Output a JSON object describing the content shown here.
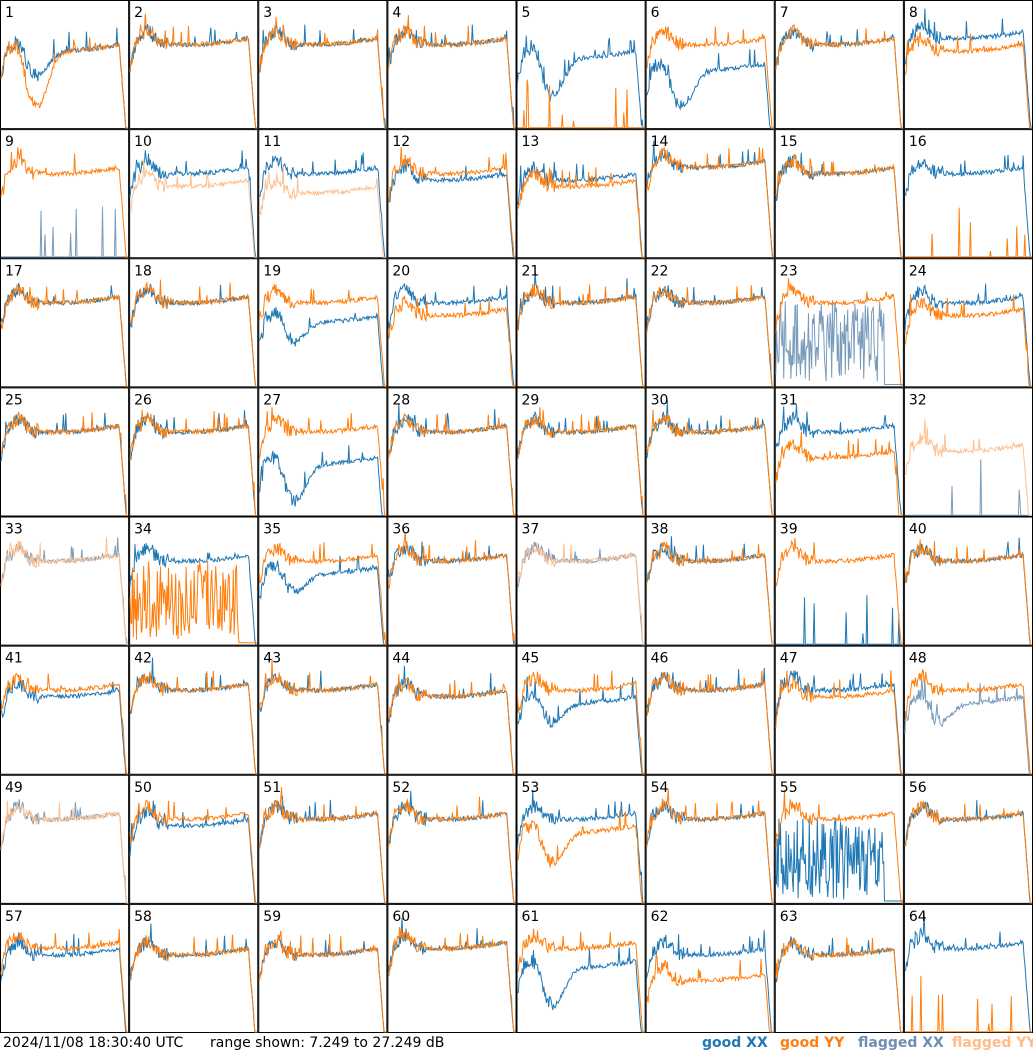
{
  "footer": {
    "timestamp": "2024/11/08 18:30:40 UTC",
    "range_text": "range shown: 7.249 to 27.249 dB",
    "legend": {
      "good_xx": "good XX",
      "good_yy": "good YY",
      "flagged_xx": "flagged XX",
      "flagged_yy": "flagged YY"
    }
  },
  "colors": {
    "good_xx": "#1f77b4",
    "good_yy": "#ff7f0e",
    "flagged_xx": "#7a9cbc",
    "flagged_yy": "#ffc090"
  },
  "chart_data": {
    "type": "line",
    "title": "",
    "ylim": [
      7.249,
      27.249
    ],
    "unit": "dB",
    "grid": false,
    "rows": 8,
    "cols": 8,
    "panels": [
      {
        "label": "1",
        "xx": {
          "flagged": false,
          "shape": "sag",
          "level": 20,
          "sag": 4
        },
        "yy": {
          "flagged": false,
          "shape": "sag",
          "level": 20,
          "sag": 9
        }
      },
      {
        "label": "2",
        "xx": {
          "flagged": false,
          "shape": "normal",
          "level": 21
        },
        "yy": {
          "flagged": false,
          "shape": "normal",
          "level": 21
        }
      },
      {
        "label": "3",
        "xx": {
          "flagged": false,
          "shape": "normal",
          "level": 21
        },
        "yy": {
          "flagged": false,
          "shape": "normal",
          "level": 21
        }
      },
      {
        "label": "4",
        "xx": {
          "flagged": false,
          "shape": "normal",
          "level": 21
        },
        "yy": {
          "flagged": false,
          "shape": "normal",
          "level": 21
        }
      },
      {
        "label": "5",
        "xx": {
          "flagged": false,
          "shape": "sag",
          "level": 19,
          "sag": 6
        },
        "yy": {
          "flagged": false,
          "shape": "dead"
        }
      },
      {
        "label": "6",
        "xx": {
          "flagged": false,
          "shape": "sag",
          "level": 17,
          "sag": 6
        },
        "yy": {
          "flagged": false,
          "shape": "normal",
          "level": 21
        }
      },
      {
        "label": "7",
        "xx": {
          "flagged": false,
          "shape": "normal",
          "level": 21
        },
        "yy": {
          "flagged": false,
          "shape": "normal",
          "level": 21
        }
      },
      {
        "label": "8",
        "xx": {
          "flagged": false,
          "shape": "normal",
          "level": 22
        },
        "yy": {
          "flagged": false,
          "shape": "normal",
          "level": 20
        }
      },
      {
        "label": "9",
        "xx": {
          "flagged": true,
          "shape": "dead"
        },
        "yy": {
          "flagged": false,
          "shape": "normal",
          "level": 21
        }
      },
      {
        "label": "10",
        "xx": {
          "flagged": false,
          "shape": "normal",
          "level": 21
        },
        "yy": {
          "flagged": true,
          "shape": "normal",
          "level": 19
        }
      },
      {
        "label": "11",
        "xx": {
          "flagged": false,
          "shape": "normal",
          "level": 21
        },
        "yy": {
          "flagged": true,
          "shape": "normal",
          "level": 18
        }
      },
      {
        "label": "12",
        "xx": {
          "flagged": false,
          "shape": "normal",
          "level": 20
        },
        "yy": {
          "flagged": false,
          "shape": "normal",
          "level": 21
        }
      },
      {
        "label": "13",
        "xx": {
          "flagged": false,
          "shape": "normal",
          "level": 20
        },
        "yy": {
          "flagged": false,
          "shape": "normal",
          "level": 19
        }
      },
      {
        "label": "14",
        "xx": {
          "flagged": false,
          "shape": "normal",
          "level": 22
        },
        "yy": {
          "flagged": false,
          "shape": "normal",
          "level": 22
        }
      },
      {
        "label": "15",
        "xx": {
          "flagged": false,
          "shape": "normal",
          "level": 21
        },
        "yy": {
          "flagged": false,
          "shape": "normal",
          "level": 21
        }
      },
      {
        "label": "16",
        "xx": {
          "flagged": false,
          "shape": "normal",
          "level": 21
        },
        "yy": {
          "flagged": false,
          "shape": "dead"
        }
      },
      {
        "label": "17",
        "xx": {
          "flagged": false,
          "shape": "normal",
          "level": 21
        },
        "yy": {
          "flagged": false,
          "shape": "normal",
          "level": 21
        }
      },
      {
        "label": "18",
        "xx": {
          "flagged": false,
          "shape": "normal",
          "level": 21
        },
        "yy": {
          "flagged": false,
          "shape": "normal",
          "level": 21
        }
      },
      {
        "label": "19",
        "xx": {
          "flagged": false,
          "shape": "sag",
          "level": 18,
          "sag": 3
        },
        "yy": {
          "flagged": false,
          "shape": "normal",
          "level": 21
        }
      },
      {
        "label": "20",
        "xx": {
          "flagged": false,
          "shape": "normal",
          "level": 21
        },
        "yy": {
          "flagged": false,
          "shape": "normal",
          "level": 19
        }
      },
      {
        "label": "21",
        "xx": {
          "flagged": false,
          "shape": "normal",
          "level": 21
        },
        "yy": {
          "flagged": false,
          "shape": "normal",
          "level": 21
        }
      },
      {
        "label": "22",
        "xx": {
          "flagged": false,
          "shape": "normal",
          "level": 21
        },
        "yy": {
          "flagged": false,
          "shape": "normal",
          "level": 21
        }
      },
      {
        "label": "23",
        "xx": {
          "flagged": true,
          "shape": "noise"
        },
        "yy": {
          "flagged": false,
          "shape": "normal",
          "level": 21
        }
      },
      {
        "label": "24",
        "xx": {
          "flagged": false,
          "shape": "normal",
          "level": 21
        },
        "yy": {
          "flagged": false,
          "shape": "normal",
          "level": 19
        }
      },
      {
        "label": "25",
        "xx": {
          "flagged": false,
          "shape": "normal",
          "level": 21
        },
        "yy": {
          "flagged": false,
          "shape": "normal",
          "level": 21
        }
      },
      {
        "label": "26",
        "xx": {
          "flagged": false,
          "shape": "normal",
          "level": 21
        },
        "yy": {
          "flagged": false,
          "shape": "normal",
          "level": 21
        }
      },
      {
        "label": "27",
        "xx": {
          "flagged": false,
          "shape": "sag",
          "level": 16,
          "sag": 6
        },
        "yy": {
          "flagged": false,
          "shape": "normal",
          "level": 21
        }
      },
      {
        "label": "28",
        "xx": {
          "flagged": false,
          "shape": "normal",
          "level": 21
        },
        "yy": {
          "flagged": false,
          "shape": "normal",
          "level": 21
        }
      },
      {
        "label": "29",
        "xx": {
          "flagged": false,
          "shape": "normal",
          "level": 21
        },
        "yy": {
          "flagged": false,
          "shape": "normal",
          "level": 21
        }
      },
      {
        "label": "30",
        "xx": {
          "flagged": false,
          "shape": "normal",
          "level": 21
        },
        "yy": {
          "flagged": false,
          "shape": "normal",
          "level": 21
        }
      },
      {
        "label": "31",
        "xx": {
          "flagged": false,
          "shape": "normal",
          "level": 21
        },
        "yy": {
          "flagged": false,
          "shape": "normal",
          "level": 17
        }
      },
      {
        "label": "32",
        "xx": {
          "flagged": true,
          "shape": "dead"
        },
        "yy": {
          "flagged": true,
          "shape": "normal",
          "level": 18
        }
      },
      {
        "label": "33",
        "xx": {
          "flagged": true,
          "shape": "normal",
          "level": 21
        },
        "yy": {
          "flagged": true,
          "shape": "normal",
          "level": 21
        }
      },
      {
        "label": "34",
        "xx": {
          "flagged": false,
          "shape": "normal",
          "level": 21
        },
        "yy": {
          "flagged": false,
          "shape": "noise"
        }
      },
      {
        "label": "35",
        "xx": {
          "flagged": false,
          "shape": "sag",
          "level": 19,
          "sag": 3
        },
        "yy": {
          "flagged": false,
          "shape": "normal",
          "level": 21
        }
      },
      {
        "label": "36",
        "xx": {
          "flagged": false,
          "shape": "normal",
          "level": 21
        },
        "yy": {
          "flagged": false,
          "shape": "normal",
          "level": 21
        }
      },
      {
        "label": "37",
        "xx": {
          "flagged": true,
          "shape": "normal",
          "level": 21
        },
        "yy": {
          "flagged": true,
          "shape": "normal",
          "level": 21
        }
      },
      {
        "label": "38",
        "xx": {
          "flagged": false,
          "shape": "normal",
          "level": 21
        },
        "yy": {
          "flagged": false,
          "shape": "normal",
          "level": 21
        }
      },
      {
        "label": "39",
        "xx": {
          "flagged": false,
          "shape": "dead"
        },
        "yy": {
          "flagged": false,
          "shape": "normal",
          "level": 21
        }
      },
      {
        "label": "40",
        "xx": {
          "flagged": false,
          "shape": "normal",
          "level": 21
        },
        "yy": {
          "flagged": false,
          "shape": "normal",
          "level": 21
        }
      },
      {
        "label": "41",
        "xx": {
          "flagged": false,
          "shape": "normal",
          "level": 20
        },
        "yy": {
          "flagged": false,
          "shape": "normal",
          "level": 21
        }
      },
      {
        "label": "42",
        "xx": {
          "flagged": false,
          "shape": "normal",
          "level": 21
        },
        "yy": {
          "flagged": false,
          "shape": "normal",
          "level": 21
        }
      },
      {
        "label": "43",
        "xx": {
          "flagged": false,
          "shape": "normal",
          "level": 21
        },
        "yy": {
          "flagged": false,
          "shape": "normal",
          "level": 21
        }
      },
      {
        "label": "44",
        "xx": {
          "flagged": false,
          "shape": "normal",
          "level": 20
        },
        "yy": {
          "flagged": false,
          "shape": "normal",
          "level": 20
        }
      },
      {
        "label": "45",
        "xx": {
          "flagged": false,
          "shape": "sag",
          "level": 19,
          "sag": 3
        },
        "yy": {
          "flagged": false,
          "shape": "normal",
          "level": 21
        }
      },
      {
        "label": "46",
        "xx": {
          "flagged": false,
          "shape": "normal",
          "level": 21
        },
        "yy": {
          "flagged": false,
          "shape": "normal",
          "level": 21
        }
      },
      {
        "label": "47",
        "xx": {
          "flagged": false,
          "shape": "normal",
          "level": 21
        },
        "yy": {
          "flagged": false,
          "shape": "normal",
          "level": 20
        }
      },
      {
        "label": "48",
        "xx": {
          "flagged": true,
          "shape": "sag",
          "level": 19,
          "sag": 3
        },
        "yy": {
          "flagged": false,
          "shape": "normal",
          "level": 21
        }
      },
      {
        "label": "49",
        "xx": {
          "flagged": true,
          "shape": "normal",
          "level": 21
        },
        "yy": {
          "flagged": true,
          "shape": "normal",
          "level": 21
        }
      },
      {
        "label": "50",
        "xx": {
          "flagged": false,
          "shape": "normal",
          "level": 20
        },
        "yy": {
          "flagged": false,
          "shape": "normal",
          "level": 21
        }
      },
      {
        "label": "51",
        "xx": {
          "flagged": false,
          "shape": "normal",
          "level": 21
        },
        "yy": {
          "flagged": false,
          "shape": "normal",
          "level": 21
        }
      },
      {
        "label": "52",
        "xx": {
          "flagged": false,
          "shape": "normal",
          "level": 21
        },
        "yy": {
          "flagged": false,
          "shape": "normal",
          "level": 21
        }
      },
      {
        "label": "53",
        "xx": {
          "flagged": false,
          "shape": "normal",
          "level": 21
        },
        "yy": {
          "flagged": false,
          "shape": "sag",
          "level": 19,
          "sag": 5
        }
      },
      {
        "label": "54",
        "xx": {
          "flagged": false,
          "shape": "normal",
          "level": 21
        },
        "yy": {
          "flagged": false,
          "shape": "normal",
          "level": 21
        }
      },
      {
        "label": "55",
        "xx": {
          "flagged": false,
          "shape": "noise"
        },
        "yy": {
          "flagged": false,
          "shape": "normal",
          "level": 21
        }
      },
      {
        "label": "56",
        "xx": {
          "flagged": false,
          "shape": "normal",
          "level": 21
        },
        "yy": {
          "flagged": false,
          "shape": "normal",
          "level": 21
        }
      },
      {
        "label": "57",
        "xx": {
          "flagged": false,
          "shape": "normal",
          "level": 20
        },
        "yy": {
          "flagged": false,
          "shape": "normal",
          "level": 21
        }
      },
      {
        "label": "58",
        "xx": {
          "flagged": false,
          "shape": "normal",
          "level": 20
        },
        "yy": {
          "flagged": false,
          "shape": "normal",
          "level": 20
        }
      },
      {
        "label": "59",
        "xx": {
          "flagged": false,
          "shape": "normal",
          "level": 20
        },
        "yy": {
          "flagged": false,
          "shape": "normal",
          "level": 20
        }
      },
      {
        "label": "60",
        "xx": {
          "flagged": false,
          "shape": "normal",
          "level": 21
        },
        "yy": {
          "flagged": false,
          "shape": "normal",
          "level": 21
        }
      },
      {
        "label": "61",
        "xx": {
          "flagged": false,
          "shape": "sag",
          "level": 18,
          "sag": 6
        },
        "yy": {
          "flagged": false,
          "shape": "normal",
          "level": 21
        }
      },
      {
        "label": "62",
        "xx": {
          "flagged": false,
          "shape": "normal",
          "level": 20
        },
        "yy": {
          "flagged": false,
          "shape": "normal",
          "level": 16
        }
      },
      {
        "label": "63",
        "xx": {
          "flagged": false,
          "shape": "normal",
          "level": 20
        },
        "yy": {
          "flagged": false,
          "shape": "normal",
          "level": 20
        }
      },
      {
        "label": "64",
        "xx": {
          "flagged": false,
          "shape": "normal",
          "level": 21
        },
        "yy": {
          "flagged": false,
          "shape": "dead"
        }
      }
    ]
  }
}
